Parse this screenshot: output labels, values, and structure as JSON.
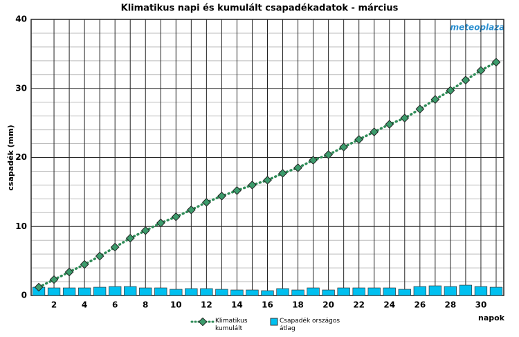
{
  "chart_data": {
    "type": "combo",
    "title": "Klimatikus napi és kumulált csapadékadatok - március",
    "watermark": "meteoplaza",
    "x_label": "napok",
    "y_label": "csapadék (mm)",
    "x": [
      1,
      2,
      3,
      4,
      5,
      6,
      7,
      8,
      9,
      10,
      11,
      12,
      13,
      14,
      15,
      16,
      17,
      18,
      19,
      20,
      21,
      22,
      23,
      24,
      25,
      26,
      27,
      28,
      29,
      30,
      31
    ],
    "xlim": [
      0.5,
      31.5
    ],
    "xticks": [
      2,
      4,
      6,
      8,
      10,
      12,
      14,
      16,
      18,
      20,
      22,
      24,
      26,
      28,
      30
    ],
    "ylim": [
      0,
      40
    ],
    "yticks": [
      0,
      10,
      20,
      30,
      40
    ],
    "grid": true,
    "series": [
      {
        "name": "Klimatikus kumulált",
        "type": "line",
        "color": "#2e8b57",
        "values": [
          1.2,
          2.3,
          3.4,
          4.5,
          5.7,
          7.0,
          8.3,
          9.4,
          10.5,
          11.4,
          12.4,
          13.5,
          14.4,
          15.2,
          16.0,
          16.7,
          17.7,
          18.5,
          19.6,
          20.4,
          21.5,
          22.6,
          23.7,
          24.8,
          25.7,
          27.0,
          28.4,
          29.7,
          31.2,
          32.6,
          33.8
        ]
      },
      {
        "name": "Csapadék országos átlag",
        "type": "bar",
        "color": "#00c0f0",
        "values": [
          1.2,
          1.1,
          1.1,
          1.1,
          1.2,
          1.3,
          1.3,
          1.1,
          1.1,
          0.9,
          1.0,
          1.0,
          0.9,
          0.8,
          0.8,
          0.7,
          1.0,
          0.8,
          1.1,
          0.8,
          1.1,
          1.1,
          1.1,
          1.1,
          0.9,
          1.3,
          1.4,
          1.3,
          1.5,
          1.3,
          1.2
        ]
      }
    ]
  }
}
